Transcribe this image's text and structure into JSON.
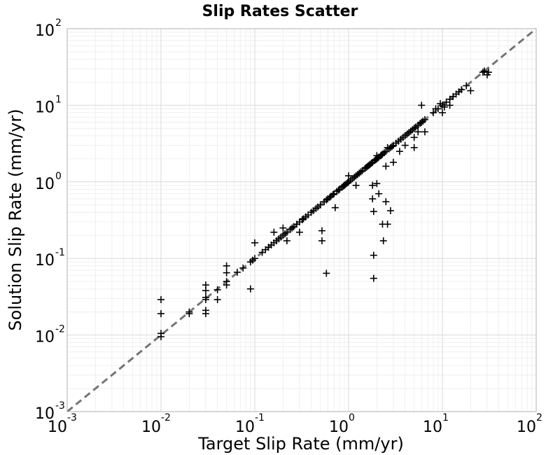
{
  "chart_data": {
    "type": "scatter",
    "title": "Slip Rates Scatter",
    "xlabel": "Target Slip Rate (mm/yr)",
    "ylabel": "Solution Slip Rate (mm/yr)",
    "xscale": "log",
    "yscale": "log",
    "xlim": [
      0.001,
      100
    ],
    "ylim": [
      0.001,
      100
    ],
    "grid": "on (major and minor)",
    "marker": "+",
    "marker_color": "#000000",
    "reference_line": {
      "style": "dashed",
      "color": "#757575",
      "from": [
        0.001,
        0.001
      ],
      "to": [
        100,
        100
      ]
    },
    "x_ticks": [
      {
        "base": "10",
        "exp": "-3",
        "value": 0.001
      },
      {
        "base": "10",
        "exp": "-2",
        "value": 0.01
      },
      {
        "base": "10",
        "exp": "-1",
        "value": 0.1
      },
      {
        "base": "10",
        "exp": "0",
        "value": 1
      },
      {
        "base": "10",
        "exp": "1",
        "value": 10
      },
      {
        "base": "10",
        "exp": "2",
        "value": 100
      }
    ],
    "y_ticks": [
      {
        "base": "10",
        "exp": "-3",
        "value": 0.001
      },
      {
        "base": "10",
        "exp": "-2",
        "value": 0.01
      },
      {
        "base": "10",
        "exp": "-1",
        "value": 0.1
      },
      {
        "base": "10",
        "exp": "0",
        "value": 1
      },
      {
        "base": "10",
        "exp": "1",
        "value": 10
      },
      {
        "base": "10",
        "exp": "2",
        "value": 100
      }
    ],
    "points": [
      [
        0.01,
        0.0095
      ],
      [
        0.01,
        0.0105
      ],
      [
        0.01,
        0.019
      ],
      [
        0.01,
        0.029
      ],
      [
        0.02,
        0.019
      ],
      [
        0.02,
        0.02
      ],
      [
        0.03,
        0.019
      ],
      [
        0.03,
        0.021
      ],
      [
        0.03,
        0.029
      ],
      [
        0.03,
        0.031
      ],
      [
        0.03,
        0.038
      ],
      [
        0.03,
        0.045
      ],
      [
        0.04,
        0.029
      ],
      [
        0.04,
        0.039
      ],
      [
        0.05,
        0.045
      ],
      [
        0.05,
        0.05
      ],
      [
        0.05,
        0.065
      ],
      [
        0.05,
        0.08
      ],
      [
        0.065,
        0.066
      ],
      [
        0.075,
        0.075
      ],
      [
        0.09,
        0.04
      ],
      [
        0.09,
        0.09
      ],
      [
        0.095,
        0.095
      ],
      [
        0.1,
        0.1
      ],
      [
        0.1,
        0.16
      ],
      [
        0.12,
        0.12
      ],
      [
        0.13,
        0.13
      ],
      [
        0.14,
        0.14
      ],
      [
        0.15,
        0.15
      ],
      [
        0.16,
        0.16
      ],
      [
        0.16,
        0.22
      ],
      [
        0.17,
        0.17
      ],
      [
        0.18,
        0.18
      ],
      [
        0.19,
        0.19
      ],
      [
        0.2,
        0.2
      ],
      [
        0.2,
        0.25
      ],
      [
        0.21,
        0.21
      ],
      [
        0.22,
        0.22
      ],
      [
        0.22,
        0.17
      ],
      [
        0.24,
        0.24
      ],
      [
        0.25,
        0.25
      ],
      [
        0.26,
        0.26
      ],
      [
        0.28,
        0.28
      ],
      [
        0.3,
        0.3
      ],
      [
        0.3,
        0.22
      ],
      [
        0.32,
        0.32
      ],
      [
        0.33,
        0.33
      ],
      [
        0.35,
        0.35
      ],
      [
        0.37,
        0.37
      ],
      [
        0.4,
        0.4
      ],
      [
        0.42,
        0.42
      ],
      [
        0.45,
        0.45
      ],
      [
        0.47,
        0.47
      ],
      [
        0.5,
        0.5
      ],
      [
        0.52,
        0.23
      ],
      [
        0.52,
        0.17
      ],
      [
        0.55,
        0.55
      ],
      [
        0.58,
        0.58
      ],
      [
        0.58,
        0.064
      ],
      [
        0.6,
        0.6
      ],
      [
        0.63,
        0.63
      ],
      [
        0.65,
        0.65
      ],
      [
        0.68,
        0.68
      ],
      [
        0.7,
        0.7
      ],
      [
        0.72,
        0.46
      ],
      [
        0.75,
        0.75
      ],
      [
        0.78,
        0.78
      ],
      [
        0.8,
        0.8
      ],
      [
        0.85,
        0.85
      ],
      [
        0.88,
        0.88
      ],
      [
        0.9,
        0.9
      ],
      [
        0.92,
        0.92
      ],
      [
        0.95,
        0.95
      ],
      [
        0.98,
        0.98
      ],
      [
        1.0,
        1.0
      ],
      [
        1.0,
        1.2
      ],
      [
        1.05,
        1.05
      ],
      [
        1.1,
        1.1
      ],
      [
        1.15,
        1.15
      ],
      [
        1.2,
        1.2
      ],
      [
        1.2,
        0.9
      ],
      [
        1.25,
        1.25
      ],
      [
        1.3,
        1.3
      ],
      [
        1.35,
        1.35
      ],
      [
        1.4,
        1.4
      ],
      [
        1.5,
        1.5
      ],
      [
        1.55,
        1.55
      ],
      [
        1.6,
        1.6
      ],
      [
        1.65,
        1.65
      ],
      [
        1.7,
        1.7
      ],
      [
        1.75,
        1.75
      ],
      [
        1.8,
        1.8
      ],
      [
        1.8,
        0.9
      ],
      [
        1.8,
        0.6
      ],
      [
        1.85,
        0.41
      ],
      [
        1.85,
        0.11
      ],
      [
        1.85,
        0.055
      ],
      [
        1.9,
        1.9
      ],
      [
        1.95,
        1.95
      ],
      [
        2.0,
        2.0
      ],
      [
        2.0,
        2.2
      ],
      [
        2.0,
        0.95
      ],
      [
        2.05,
        2.05
      ],
      [
        2.1,
        2.1
      ],
      [
        2.1,
        0.7
      ],
      [
        2.2,
        2.2
      ],
      [
        2.25,
        2.25
      ],
      [
        2.3,
        2.3
      ],
      [
        2.3,
        0.28
      ],
      [
        2.35,
        0.17
      ],
      [
        2.4,
        2.4
      ],
      [
        2.5,
        2.5
      ],
      [
        2.5,
        1.6
      ],
      [
        2.5,
        0.55
      ],
      [
        2.6,
        0.28
      ],
      [
        2.6,
        2.8
      ],
      [
        2.7,
        2.7
      ],
      [
        2.8,
        2.8
      ],
      [
        2.8,
        0.42
      ],
      [
        2.9,
        2.9
      ],
      [
        3.0,
        3.0
      ],
      [
        3.0,
        1.8
      ],
      [
        3.2,
        3.2
      ],
      [
        3.4,
        3.4
      ],
      [
        3.5,
        2.5
      ],
      [
        3.6,
        3.6
      ],
      [
        3.8,
        3.8
      ],
      [
        4.0,
        4.0
      ],
      [
        4.0,
        3.0
      ],
      [
        4.2,
        4.2
      ],
      [
        4.4,
        4.4
      ],
      [
        4.6,
        4.6
      ],
      [
        4.8,
        4.8
      ],
      [
        5.0,
        5.0
      ],
      [
        5.0,
        3.8
      ],
      [
        5.0,
        2.8
      ],
      [
        5.2,
        5.2
      ],
      [
        5.5,
        5.5
      ],
      [
        5.5,
        4.5
      ],
      [
        5.8,
        5.8
      ],
      [
        6.0,
        6.0
      ],
      [
        6.0,
        10.0
      ],
      [
        6.2,
        6.2
      ],
      [
        6.5,
        6.5
      ],
      [
        6.5,
        4.5
      ],
      [
        8.0,
        8.0
      ],
      [
        8.5,
        9.0
      ],
      [
        9.0,
        9.0
      ],
      [
        9.5,
        10.5
      ],
      [
        10.0,
        10.0
      ],
      [
        10.0,
        8.0
      ],
      [
        10.5,
        9.5
      ],
      [
        11.0,
        11.0
      ],
      [
        12.0,
        12.0
      ],
      [
        12.0,
        10.0
      ],
      [
        13.0,
        13.0
      ],
      [
        14.0,
        14.0
      ],
      [
        15.0,
        15.0
      ],
      [
        16.0,
        16.0
      ],
      [
        18.0,
        18.0
      ],
      [
        20.0,
        15.5
      ],
      [
        27.0,
        27.0
      ],
      [
        28.0,
        28.0
      ],
      [
        30.0,
        25.0
      ],
      [
        31.0,
        27.0
      ]
    ]
  }
}
